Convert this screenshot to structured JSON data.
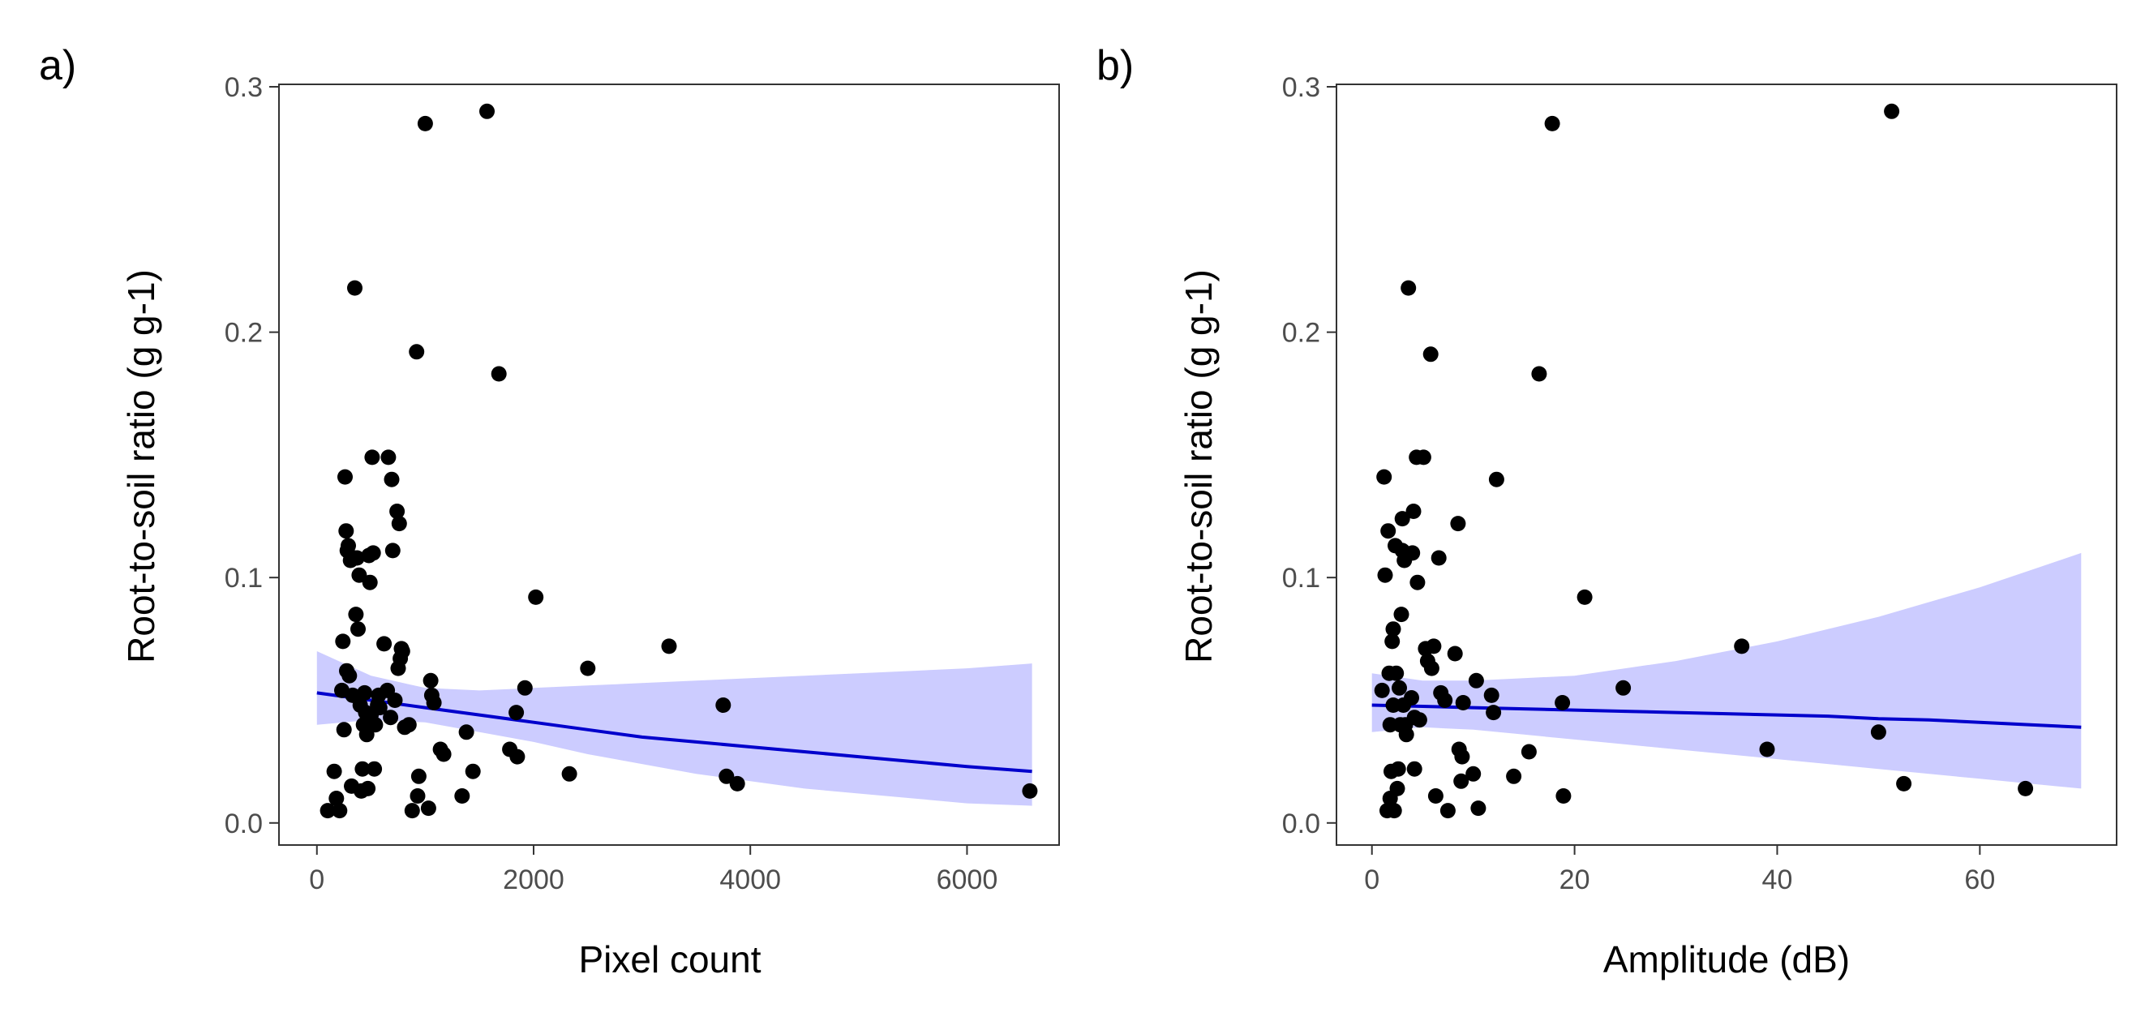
{
  "chart_data": [
    {
      "panel_label": "a)",
      "type": "scatter",
      "title": "",
      "xlabel": "Pixel count",
      "ylabel": "Root-to-soil ratio (g g-1)",
      "xlim": [
        -350,
        6850
      ],
      "ylim": [
        -0.009,
        0.301
      ],
      "xticks": [
        0,
        2000,
        4000,
        6000
      ],
      "xtick_labels": [
        "0",
        "2000",
        "4000",
        "6000"
      ],
      "yticks": [
        0.0,
        0.1,
        0.2,
        0.3
      ],
      "ytick_labels": [
        "0.0",
        "0.1",
        "0.2",
        "0.3"
      ],
      "grid": false,
      "point_color": "#000000",
      "fit_color": "#0000cc",
      "band_color": "#ccccff",
      "points": [
        [
          100,
          0.005
        ],
        [
          160,
          0.021
        ],
        [
          180,
          0.01
        ],
        [
          210,
          0.005
        ],
        [
          230,
          0.054
        ],
        [
          240,
          0.074
        ],
        [
          250,
          0.038
        ],
        [
          260,
          0.141
        ],
        [
          270,
          0.119
        ],
        [
          275,
          0.062
        ],
        [
          280,
          0.111
        ],
        [
          290,
          0.113
        ],
        [
          300,
          0.06
        ],
        [
          310,
          0.107
        ],
        [
          320,
          0.015
        ],
        [
          330,
          0.052
        ],
        [
          350,
          0.218
        ],
        [
          360,
          0.085
        ],
        [
          370,
          0.108
        ],
        [
          380,
          0.079
        ],
        [
          390,
          0.101
        ],
        [
          400,
          0.048
        ],
        [
          410,
          0.013
        ],
        [
          420,
          0.022
        ],
        [
          430,
          0.04
        ],
        [
          440,
          0.053
        ],
        [
          450,
          0.045
        ],
        [
          460,
          0.036
        ],
        [
          470,
          0.014
        ],
        [
          480,
          0.109
        ],
        [
          490,
          0.098
        ],
        [
          500,
          0.044
        ],
        [
          510,
          0.149
        ],
        [
          520,
          0.11
        ],
        [
          530,
          0.022
        ],
        [
          540,
          0.04
        ],
        [
          560,
          0.048
        ],
        [
          570,
          0.052
        ],
        [
          580,
          0.047
        ],
        [
          620,
          0.073
        ],
        [
          650,
          0.054
        ],
        [
          660,
          0.149
        ],
        [
          680,
          0.043
        ],
        [
          690,
          0.14
        ],
        [
          700,
          0.111
        ],
        [
          720,
          0.05
        ],
        [
          740,
          0.127
        ],
        [
          750,
          0.063
        ],
        [
          760,
          0.122
        ],
        [
          770,
          0.067
        ],
        [
          780,
          0.071
        ],
        [
          790,
          0.07
        ],
        [
          810,
          0.039
        ],
        [
          850,
          0.04
        ],
        [
          880,
          0.005
        ],
        [
          920,
          0.192
        ],
        [
          930,
          0.011
        ],
        [
          940,
          0.019
        ],
        [
          1000,
          0.285
        ],
        [
          1030,
          0.006
        ],
        [
          1050,
          0.058
        ],
        [
          1060,
          0.052
        ],
        [
          1080,
          0.049
        ],
        [
          1140,
          0.03
        ],
        [
          1170,
          0.028
        ],
        [
          1340,
          0.011
        ],
        [
          1380,
          0.037
        ],
        [
          1440,
          0.021
        ],
        [
          1570,
          0.29
        ],
        [
          1680,
          0.183
        ],
        [
          1780,
          0.03
        ],
        [
          1840,
          0.045
        ],
        [
          1850,
          0.027
        ],
        [
          1920,
          0.055
        ],
        [
          2020,
          0.092
        ],
        [
          2330,
          0.02
        ],
        [
          2500,
          0.063
        ],
        [
          3250,
          0.072
        ],
        [
          3750,
          0.048
        ],
        [
          3780,
          0.019
        ],
        [
          3880,
          0.016
        ],
        [
          6580,
          0.013
        ]
      ],
      "fit": {
        "x": [
          0,
          500,
          1000,
          1500,
          2000,
          2500,
          3000,
          3500,
          4000,
          4500,
          5000,
          5500,
          6000,
          6600
        ],
        "y": [
          0.053,
          0.05,
          0.047,
          0.044,
          0.041,
          0.038,
          0.035,
          0.033,
          0.031,
          0.029,
          0.027,
          0.025,
          0.023,
          0.021
        ],
        "lower": [
          0.04,
          0.042,
          0.041,
          0.037,
          0.033,
          0.028,
          0.024,
          0.02,
          0.017,
          0.014,
          0.012,
          0.01,
          0.008,
          0.007
        ],
        "upper": [
          0.07,
          0.06,
          0.055,
          0.054,
          0.055,
          0.056,
          0.057,
          0.058,
          0.059,
          0.06,
          0.061,
          0.062,
          0.063,
          0.065
        ]
      }
    },
    {
      "panel_label": "b)",
      "type": "scatter",
      "title": "",
      "xlabel": "Amplitude (dB)",
      "ylabel": "Root-to-soil ratio (g g-1)",
      "xlim": [
        -3.5,
        73.5
      ],
      "ylim": [
        -0.009,
        0.301
      ],
      "xticks": [
        0,
        20,
        40,
        60
      ],
      "xtick_labels": [
        "0",
        "20",
        "40",
        "60"
      ],
      "yticks": [
        0.0,
        0.1,
        0.2,
        0.3
      ],
      "ytick_labels": [
        "0.0",
        "0.1",
        "0.2",
        "0.3"
      ],
      "grid": false,
      "point_color": "#000000",
      "fit_color": "#0000cc",
      "band_color": "#ccccff",
      "points": [
        [
          1.0,
          0.054
        ],
        [
          1.2,
          0.141
        ],
        [
          1.3,
          0.101
        ],
        [
          1.5,
          0.005
        ],
        [
          1.6,
          0.119
        ],
        [
          1.7,
          0.061
        ],
        [
          1.8,
          0.04
        ],
        [
          1.8,
          0.01
        ],
        [
          1.9,
          0.021
        ],
        [
          2.0,
          0.074
        ],
        [
          2.1,
          0.079
        ],
        [
          2.1,
          0.048
        ],
        [
          2.2,
          0.005
        ],
        [
          2.3,
          0.113
        ],
        [
          2.4,
          0.061
        ],
        [
          2.5,
          0.014
        ],
        [
          2.6,
          0.022
        ],
        [
          2.7,
          0.055
        ],
        [
          2.8,
          0.04
        ],
        [
          2.9,
          0.085
        ],
        [
          3.0,
          0.111
        ],
        [
          3.0,
          0.124
        ],
        [
          3.1,
          0.048
        ],
        [
          3.2,
          0.107
        ],
        [
          3.3,
          0.04
        ],
        [
          3.4,
          0.036
        ],
        [
          3.6,
          0.218
        ],
        [
          3.9,
          0.051
        ],
        [
          4.0,
          0.11
        ],
        [
          4.1,
          0.127
        ],
        [
          4.2,
          0.043
        ],
        [
          4.2,
          0.022
        ],
        [
          4.4,
          0.149
        ],
        [
          4.5,
          0.098
        ],
        [
          4.7,
          0.042
        ],
        [
          5.1,
          0.149
        ],
        [
          5.3,
          0.071
        ],
        [
          5.5,
          0.066
        ],
        [
          5.8,
          0.191
        ],
        [
          5.9,
          0.063
        ],
        [
          6.1,
          0.072
        ],
        [
          6.3,
          0.011
        ],
        [
          6.6,
          0.108
        ],
        [
          6.8,
          0.053
        ],
        [
          7.2,
          0.05
        ],
        [
          7.5,
          0.005
        ],
        [
          8.2,
          0.069
        ],
        [
          8.5,
          0.122
        ],
        [
          8.6,
          0.03
        ],
        [
          8.8,
          0.017
        ],
        [
          8.9,
          0.027
        ],
        [
          9.0,
          0.049
        ],
        [
          10.0,
          0.02
        ],
        [
          10.3,
          0.058
        ],
        [
          10.5,
          0.006
        ],
        [
          11.8,
          0.052
        ],
        [
          12.0,
          0.045
        ],
        [
          12.3,
          0.14
        ],
        [
          14.0,
          0.019
        ],
        [
          15.5,
          0.029
        ],
        [
          16.5,
          0.183
        ],
        [
          17.8,
          0.285
        ],
        [
          18.8,
          0.049
        ],
        [
          18.9,
          0.011
        ],
        [
          21.0,
          0.092
        ],
        [
          24.8,
          0.055
        ],
        [
          36.5,
          0.072
        ],
        [
          39.0,
          0.03
        ],
        [
          50.0,
          0.037
        ],
        [
          51.3,
          0.29
        ],
        [
          52.5,
          0.016
        ],
        [
          64.5,
          0.014
        ]
      ],
      "fit": {
        "x": [
          0,
          5,
          10,
          15,
          20,
          25,
          30,
          35,
          40,
          45,
          50,
          55,
          60,
          65,
          70
        ],
        "y": [
          0.048,
          0.0475,
          0.047,
          0.0465,
          0.046,
          0.0455,
          0.045,
          0.0445,
          0.044,
          0.0435,
          0.0425,
          0.042,
          0.041,
          0.04,
          0.039
        ],
        "lower": [
          0.037,
          0.039,
          0.038,
          0.036,
          0.034,
          0.032,
          0.03,
          0.028,
          0.026,
          0.024,
          0.022,
          0.02,
          0.018,
          0.016,
          0.014
        ],
        "upper": [
          0.061,
          0.058,
          0.058,
          0.059,
          0.06,
          0.063,
          0.066,
          0.07,
          0.074,
          0.079,
          0.084,
          0.09,
          0.096,
          0.103,
          0.11
        ]
      }
    }
  ]
}
